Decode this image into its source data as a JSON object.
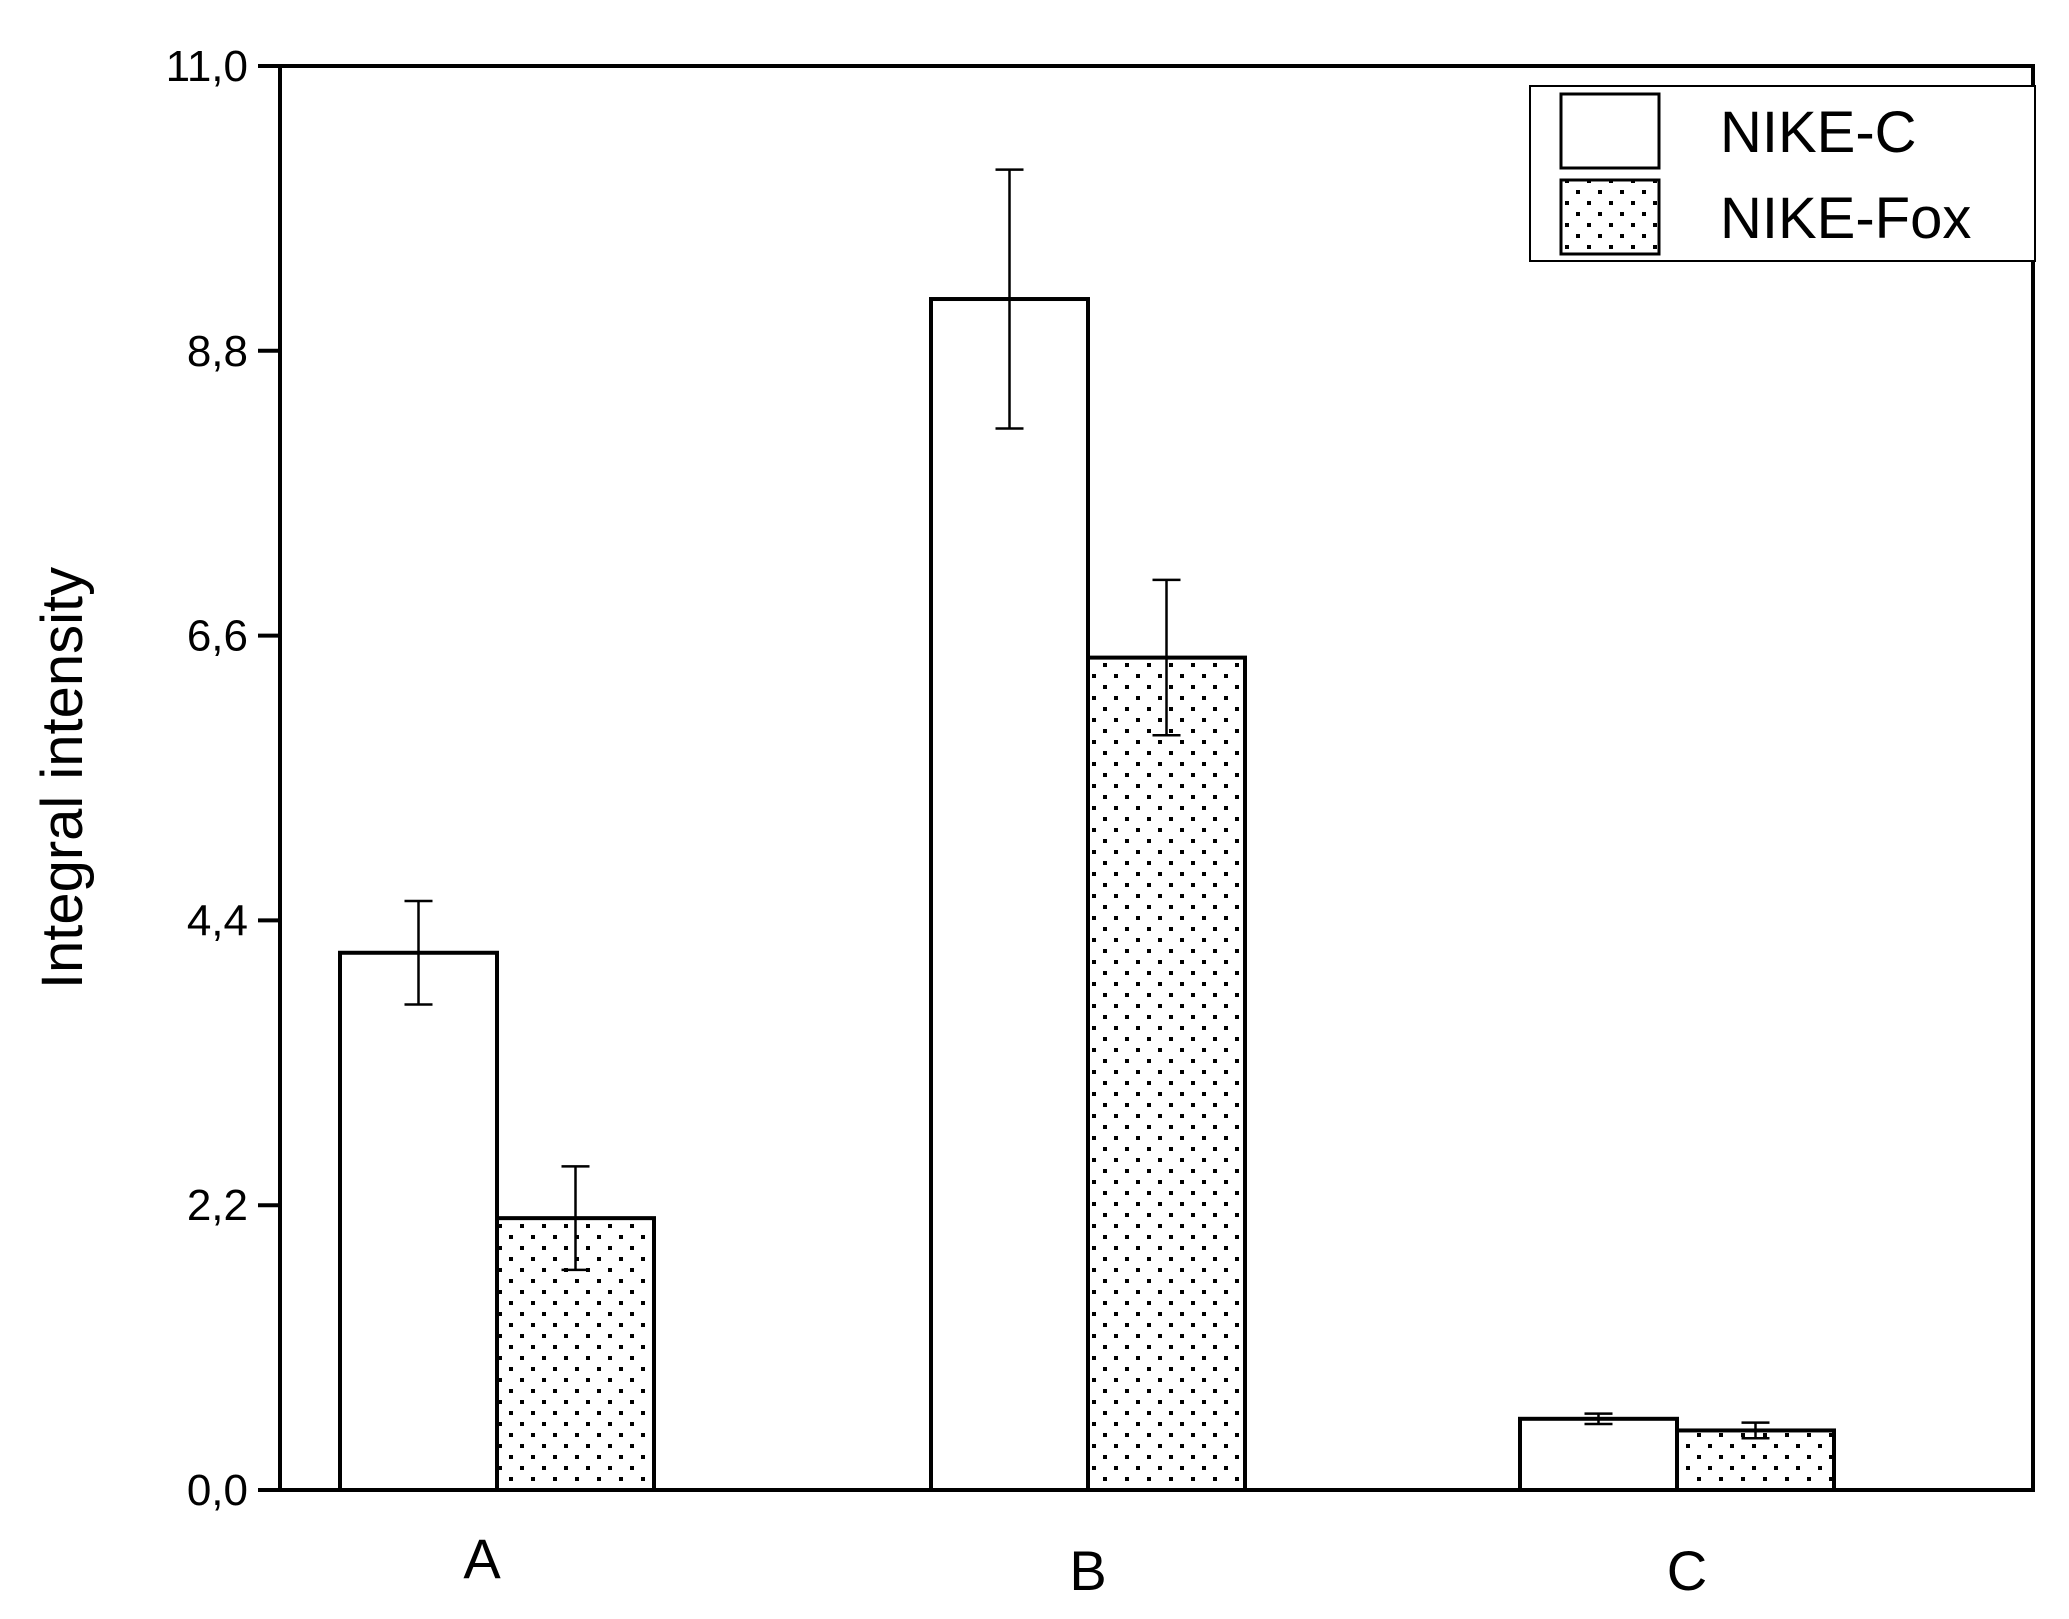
{
  "chart_data": {
    "type": "bar",
    "title": "",
    "xlabel": "",
    "ylabel": "Integral intensity",
    "ylim": [
      0,
      11
    ],
    "yticks": [
      "0,0",
      "2,2",
      "4,4",
      "6,6",
      "8,8",
      "11,0"
    ],
    "ytick_values": [
      0,
      2.2,
      4.4,
      6.6,
      8.8,
      11
    ],
    "categories": [
      "A",
      "B",
      "C"
    ],
    "series": [
      {
        "name": "NIKE-C",
        "pattern": "empty",
        "values": [
          4.15,
          9.2,
          0.55
        ],
        "errors": [
          0.4,
          1.0,
          0.04
        ]
      },
      {
        "name": "NIKE-Fox",
        "pattern": "dotted",
        "values": [
          2.1,
          6.43,
          0.46
        ],
        "errors": [
          0.4,
          0.6,
          0.06
        ]
      }
    ],
    "legend_position": "top-right",
    "grid": false,
    "colors": {
      "bar_fill": "#ffffff",
      "bar_stroke": "#000000",
      "dot": "#000000"
    }
  }
}
